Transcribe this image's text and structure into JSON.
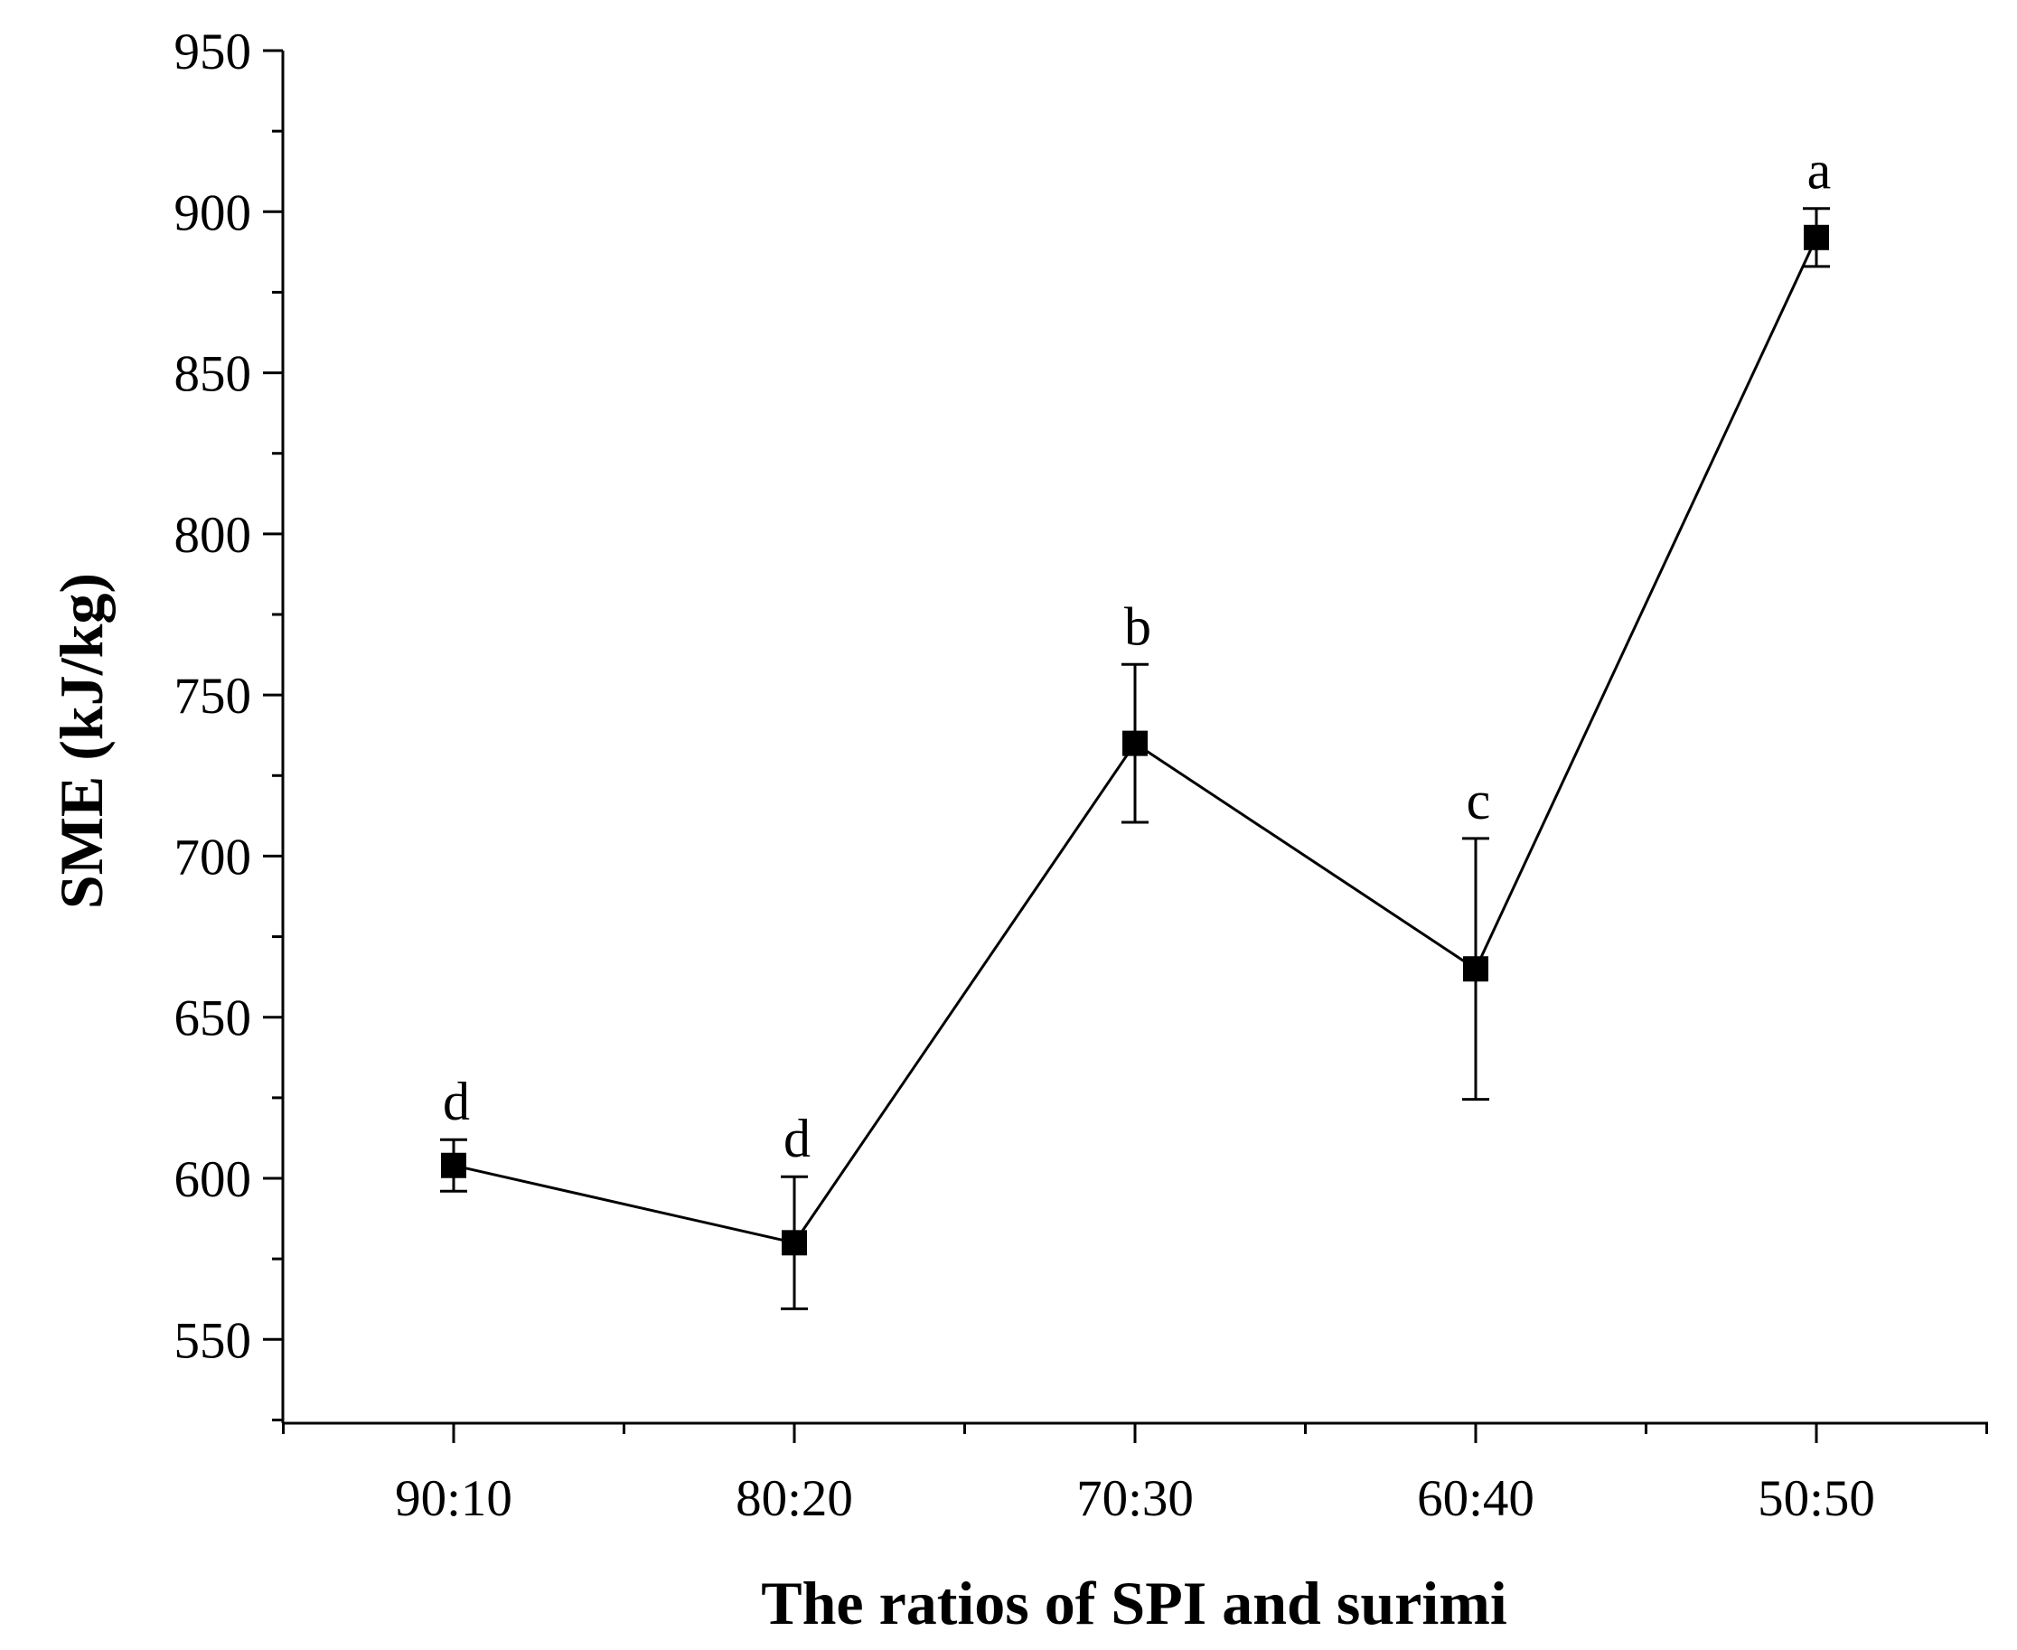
{
  "chart_data": {
    "type": "line",
    "title": "",
    "xlabel": "The ratios of SPI and surimi",
    "ylabel": "SME (kJ/kg)",
    "categories": [
      "90:10",
      "80:20",
      "70:30",
      "60:40",
      "50:50"
    ],
    "ylim": [
      524,
      950
    ],
    "yticks": [
      550,
      600,
      650,
      700,
      750,
      800,
      850,
      900,
      950
    ],
    "series": [
      {
        "name": "SME",
        "values": [
          604,
          580,
          735,
          665,
          892
        ],
        "errors": [
          8,
          20.5,
          24.5,
          40.5,
          9
        ],
        "labels": [
          "d",
          "d",
          "b",
          "c",
          "a"
        ]
      }
    ]
  }
}
